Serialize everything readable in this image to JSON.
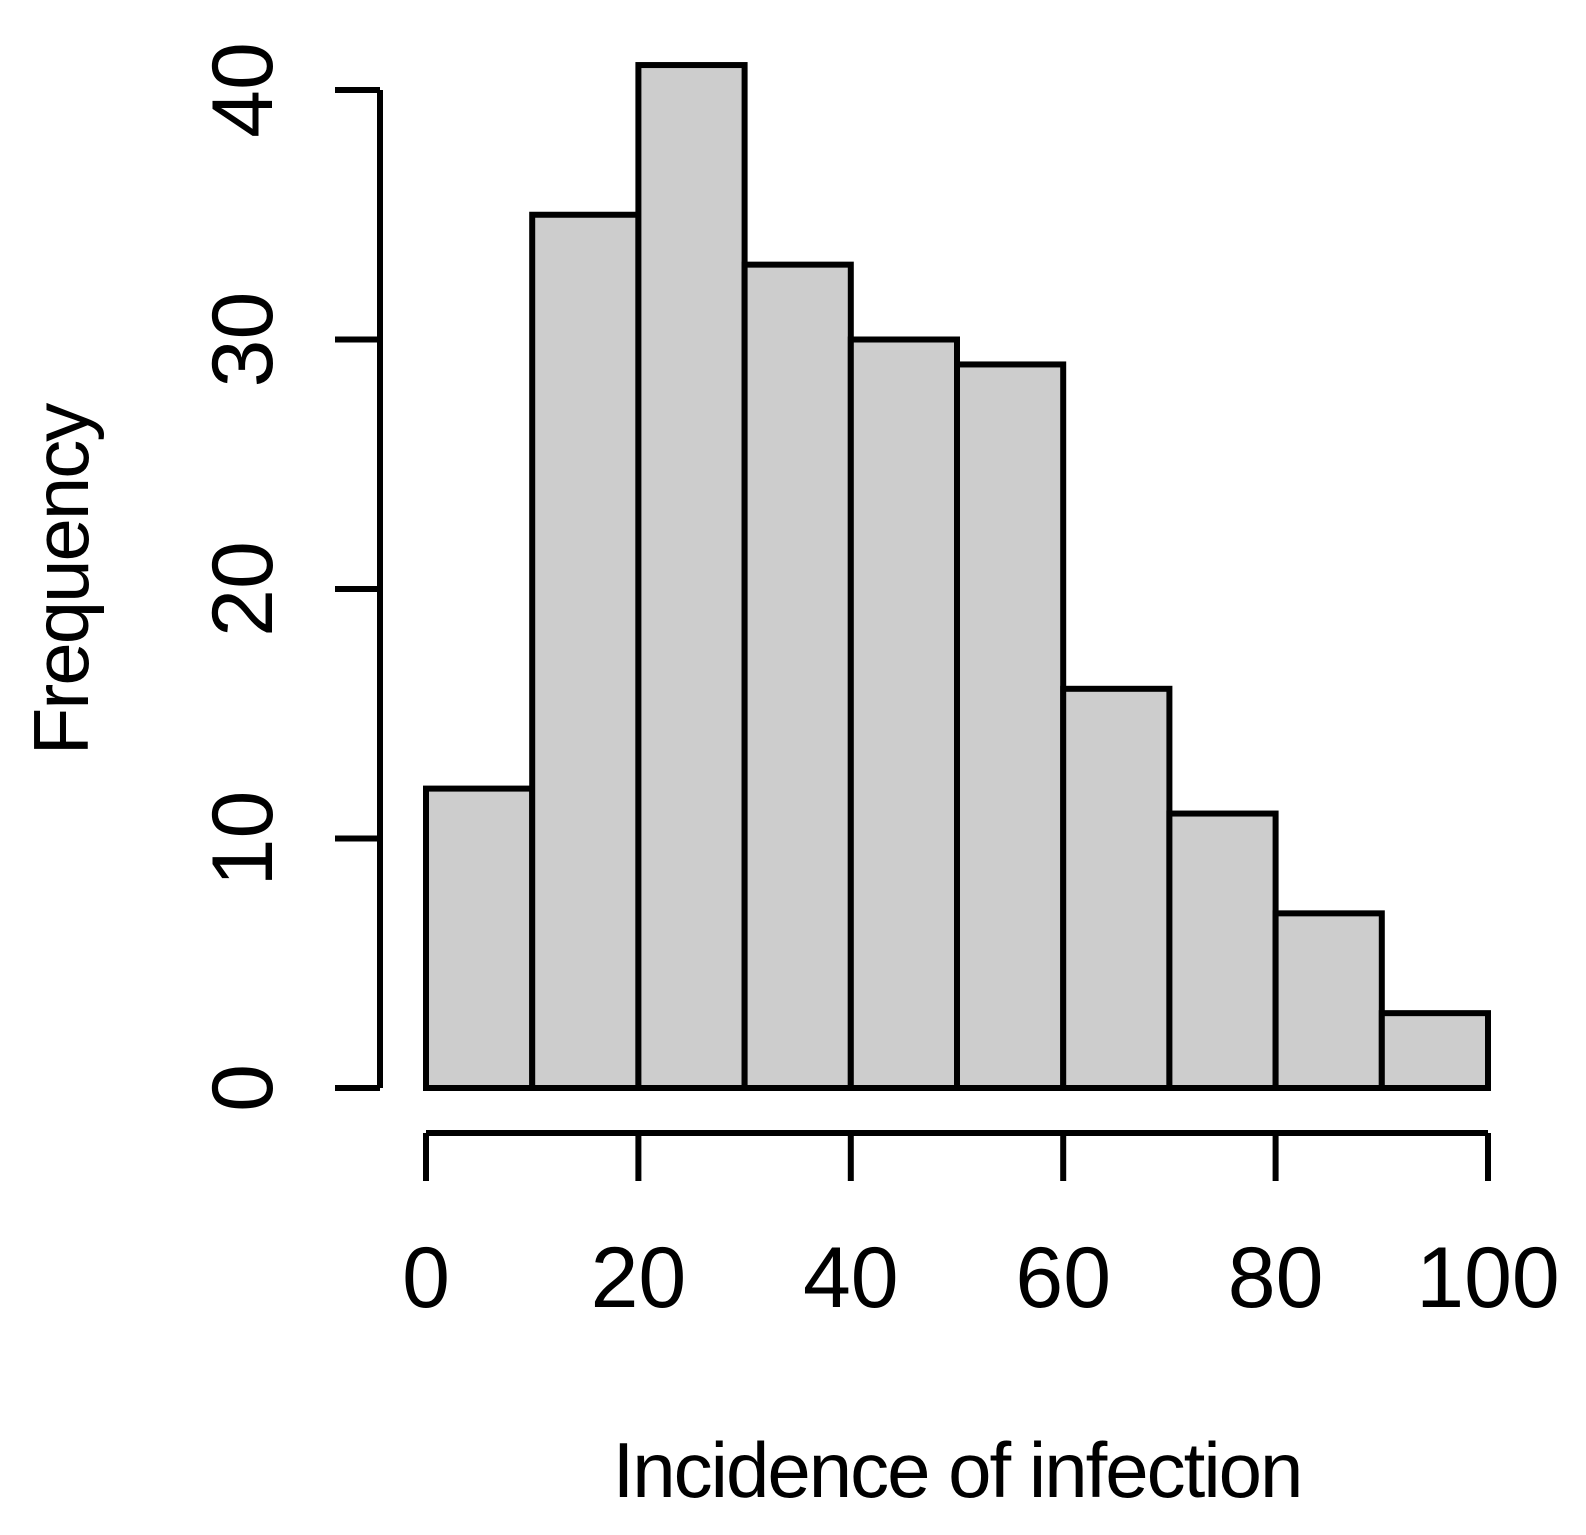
{
  "figure": {
    "background": "#ffffff"
  },
  "chart_data": {
    "type": "bar",
    "subtype": "histogram",
    "title": "",
    "xlabel": "Incidence of infection",
    "ylabel": "Frequency",
    "bin_width": 10,
    "bin_edges": [
      0,
      10,
      20,
      30,
      40,
      50,
      60,
      70,
      80,
      90,
      100
    ],
    "categories": [
      "0-10",
      "10-20",
      "20-30",
      "30-40",
      "40-50",
      "50-60",
      "60-70",
      "70-80",
      "80-90",
      "90-100"
    ],
    "values": [
      12,
      35,
      41,
      33,
      30,
      29,
      16,
      11,
      7,
      3
    ],
    "x_ticks": [
      0,
      20,
      40,
      60,
      80,
      100
    ],
    "y_ticks": [
      0,
      10,
      20,
      30,
      40
    ],
    "xlim": [
      0,
      100
    ],
    "ylim": [
      0,
      40
    ],
    "grid": false,
    "legend": null,
    "bar_fill": "#cdcdcd",
    "bar_stroke": "#000000",
    "axis_color": "#000000",
    "text_color": "#000000"
  }
}
